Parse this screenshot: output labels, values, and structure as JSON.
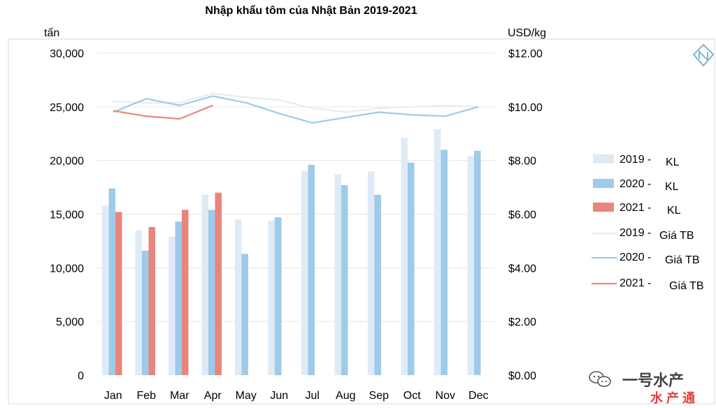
{
  "chart_data": {
    "type": "bar",
    "title": "Nhập khẩu tôm của Nhật Bản 2019-2021",
    "y_left_unit": "tấn",
    "y_right_unit": "USD/kg",
    "categories": [
      "Jan",
      "Feb",
      "Mar",
      "Apr",
      "May",
      "Jun",
      "Jul",
      "Aug",
      "Sep",
      "Oct",
      "Nov",
      "Dec"
    ],
    "y_left_ticks": [
      "0",
      "5,000",
      "10,000",
      "15,000",
      "20,000",
      "25,000",
      "30,000"
    ],
    "y_right_ticks": [
      "$0.00",
      "$2.00",
      "$4.00",
      "$6.00",
      "$8.00",
      "$10.00",
      "$12.00"
    ],
    "ylim": [
      0,
      30000
    ],
    "y2lim": [
      0,
      12
    ],
    "grid": true,
    "bar_series": [
      {
        "year": "2019",
        "metric": "KL",
        "color": "#deebf7",
        "values": [
          15800,
          13500,
          12900,
          16800,
          14500,
          14400,
          19000,
          18700,
          19000,
          22100,
          22900,
          20400
        ]
      },
      {
        "year": "2020",
        "metric": "KL",
        "color": "#9dcbe9",
        "values": [
          17400,
          11600,
          14300,
          15400,
          11300,
          14700,
          19600,
          17700,
          16800,
          19800,
          21000,
          20900
        ]
      },
      {
        "year": "2021",
        "metric": "KL",
        "color": "#e8867c",
        "values": [
          15200,
          13800,
          15400,
          17000,
          null,
          null,
          null,
          null,
          null,
          null,
          null,
          null
        ]
      }
    ],
    "line_series": [
      {
        "year": "2019",
        "metric": "Giá TB",
        "color": "#e3eef8",
        "values": [
          10.2,
          10.15,
          10.15,
          10.5,
          10.35,
          10.25,
          9.95,
          9.8,
          9.95,
          10.0,
          10.05,
          10.0
        ]
      },
      {
        "year": "2020",
        "metric": "Giá TB",
        "color": "#9dcbe9",
        "values": [
          9.8,
          10.3,
          10.05,
          10.4,
          10.15,
          9.75,
          9.4,
          9.6,
          9.8,
          9.7,
          9.65,
          10.0
        ]
      },
      {
        "year": "2021",
        "metric": "Giá TB",
        "color": "#e8867c",
        "values": [
          9.85,
          9.65,
          9.55,
          10.05,
          null,
          null,
          null,
          null,
          null,
          null,
          null,
          null
        ]
      }
    ],
    "legend_position": "right"
  },
  "legend": {
    "items": [
      {
        "year": "2019 -",
        "metric": "KL",
        "kind": "bar",
        "color": "#deebf7"
      },
      {
        "year": "2020 -",
        "metric": "KL",
        "kind": "bar",
        "color": "#9dcbe9"
      },
      {
        "year": "2021 -",
        "metric": "KL",
        "kind": "bar",
        "color": "#e8867c"
      },
      {
        "year": "2019 -",
        "metric": "Giá TB",
        "kind": "line",
        "color": "#e3eef8"
      },
      {
        "year": "2020 -",
        "metric": "Giá TB",
        "kind": "line",
        "color": "#9dcbe9"
      },
      {
        "year": "2021 -",
        "metric": "Giá TB",
        "kind": "line",
        "color": "#e8867c"
      }
    ]
  },
  "watermark": {
    "text": "一号水产",
    "subtext": "水 产 通",
    "icon": "wechat-logo-icon"
  },
  "logo": {
    "icon": "brand-n-logo-icon"
  }
}
